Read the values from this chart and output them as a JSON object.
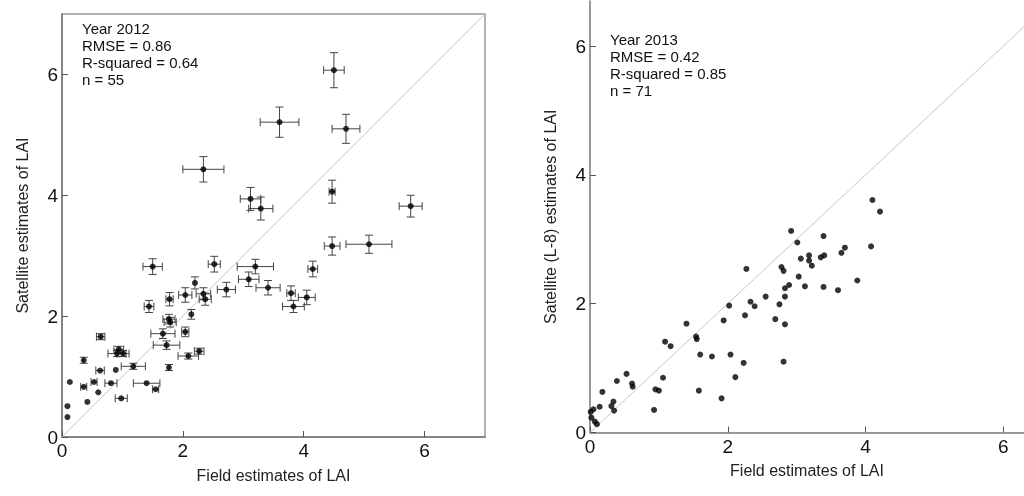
{
  "chart_data": [
    {
      "type": "scatter",
      "xlabel": "Field estimates of LAI",
      "ylabel": "Satellite estimates of LAI",
      "annotations": [
        "Year 2012",
        "RMSE = 0.86",
        "R-squared = 0.64",
        "n = 55"
      ],
      "xlim": [
        0,
        7
      ],
      "ylim": [
        0,
        7
      ],
      "xticks": [
        0,
        2,
        4,
        6
      ],
      "yticks": [
        0,
        2,
        4,
        6
      ],
      "grid": false,
      "series": [
        {
          "color": "#000000",
          "marker": "circle",
          "x": [
            4.5,
            3.6,
            4.7,
            2.34,
            3.12,
            3.29,
            4.47,
            5.77,
            4.47,
            5.08,
            1.5,
            2.52,
            3.2,
            4.15,
            3.09,
            3.41,
            2.72,
            3.79,
            4.05,
            3.83,
            2.2,
            2.34,
            2.37,
            2.04,
            1.78,
            1.44,
            2.14,
            1.77,
            1.79,
            2.04,
            1.67,
            1.73,
            2.27,
            2.09,
            1.77,
            0.64,
            0.94,
            0.91,
            1.01,
            1.18,
            0.36,
            0.63,
            0.89,
            0.13,
            0.36,
            0.53,
            0.81,
            0.6,
            1.4,
            1.55,
            0.98,
            0.42,
            0.09,
            0.09
          ],
          "values": [
            6.07,
            5.21,
            5.1,
            4.43,
            3.94,
            3.78,
            4.06,
            3.82,
            3.16,
            3.19,
            2.82,
            2.86,
            2.82,
            2.78,
            2.61,
            2.47,
            2.44,
            2.38,
            2.31,
            2.16,
            2.55,
            2.37,
            2.28,
            2.35,
            2.28,
            2.16,
            2.03,
            1.95,
            1.9,
            1.74,
            1.71,
            1.52,
            1.42,
            1.34,
            1.15,
            1.66,
            1.45,
            1.38,
            1.38,
            1.17,
            1.27,
            1.1,
            1.11,
            0.91,
            0.83,
            0.91,
            0.89,
            0.74,
            0.89,
            0.79,
            0.64,
            0.58,
            0.51,
            0.33
          ],
          "xerrors": [
            0.17,
            0.32,
            0.23,
            0.34,
            0.17,
            0.2,
            0.05,
            0.19,
            0.13,
            0.38,
            0.16,
            0.1,
            0.3,
            0.08,
            0.17,
            0.2,
            0.15,
            0.07,
            0.14,
            0.18,
            null,
            0.12,
            0.1,
            0.11,
            0.06,
            0.08,
            null,
            0.1,
            0.1,
            0.06,
            0.2,
            0.22,
            0.08,
            0.17,
            null,
            0.07,
            0.08,
            0.15,
            0.1,
            0.2,
            null,
            0.07,
            null,
            null,
            0.05,
            0.05,
            0.1,
            null,
            0.22,
            0.05,
            0.1,
            null,
            null,
            null
          ],
          "errors": [
            0.29,
            0.25,
            0.24,
            0.21,
            0.19,
            0.19,
            0.19,
            0.18,
            0.15,
            0.15,
            0.13,
            0.13,
            0.12,
            0.13,
            0.12,
            0.12,
            0.12,
            0.12,
            0.12,
            0.1,
            0.1,
            0.1,
            0.1,
            0.12,
            0.11,
            0.1,
            0.08,
            0.08,
            0.08,
            0.08,
            0.08,
            0.07,
            0.05,
            0.05,
            0.05,
            0.05,
            0.05,
            0.05,
            0.05,
            0.05,
            0.05,
            null,
            null,
            null,
            null,
            null,
            null,
            null,
            null,
            null,
            null,
            null,
            null,
            null
          ]
        },
        {
          "type": "line",
          "color": "#c8c8c8",
          "x": [
            0,
            7
          ],
          "values": [
            0,
            7
          ]
        }
      ]
    },
    {
      "type": "scatter",
      "xlabel": "Field estimates of LAI",
      "ylabel": "Satellite (L-8) estimates of LAI",
      "annotations": [
        "Year 2013",
        "RMSE = 0.42",
        "R-squared = 0.85",
        "n = 71"
      ],
      "xlim": [
        0,
        6.3
      ],
      "ylim": [
        0,
        6.7
      ],
      "xticks": [
        0,
        2,
        4,
        6
      ],
      "yticks": [
        0,
        2,
        4,
        6
      ],
      "grid": false,
      "series": [
        {
          "color": "#000000",
          "marker": "circle",
          "x": [
            4.1,
            4.21,
            2.92,
            3.39,
            3.01,
            4.08,
            3.7,
            3.65,
            3.18,
            3.4,
            3.35,
            3.06,
            3.18,
            3.22,
            2.27,
            2.78,
            2.81,
            3.03,
            3.88,
            2.89,
            2.83,
            3.12,
            3.39,
            3.6,
            2.55,
            2.83,
            2.33,
            2.39,
            2.02,
            2.75,
            2.25,
            1.94,
            2.69,
            2.83,
            1.4,
            1.54,
            1.55,
            1.09,
            1.17,
            1.6,
            1.77,
            2.04,
            2.23,
            2.81,
            2.11,
            0.53,
            0.39,
            0.61,
            0.62,
            1.06,
            0.95,
            1.0,
            0.18,
            1.58,
            1.91,
            0.93,
            0.34,
            0.31,
            0.35,
            0.14,
            0.05,
            0.01,
            0.02,
            0.07,
            0.1
          ],
          "values": [
            3.61,
            3.43,
            3.13,
            3.05,
            2.95,
            2.89,
            2.87,
            2.79,
            2.75,
            2.75,
            2.72,
            2.7,
            2.67,
            2.59,
            2.54,
            2.57,
            2.51,
            2.42,
            2.36,
            2.29,
            2.24,
            2.27,
            2.26,
            2.21,
            2.11,
            2.11,
            2.03,
            1.96,
            1.97,
            1.99,
            1.82,
            1.74,
            1.76,
            1.68,
            1.69,
            1.49,
            1.45,
            1.41,
            1.34,
            1.21,
            1.18,
            1.21,
            1.08,
            1.1,
            0.86,
            0.91,
            0.8,
            0.76,
            0.71,
            0.85,
            0.67,
            0.65,
            0.63,
            0.65,
            0.53,
            0.35,
            0.48,
            0.41,
            0.34,
            0.4,
            0.36,
            0.32,
            0.23,
            0.17,
            0.13
          ]
        },
        {
          "type": "line",
          "color": "#c8c8c8",
          "x": [
            0,
            6.3
          ],
          "values": [
            0,
            6.3
          ]
        }
      ]
    }
  ]
}
